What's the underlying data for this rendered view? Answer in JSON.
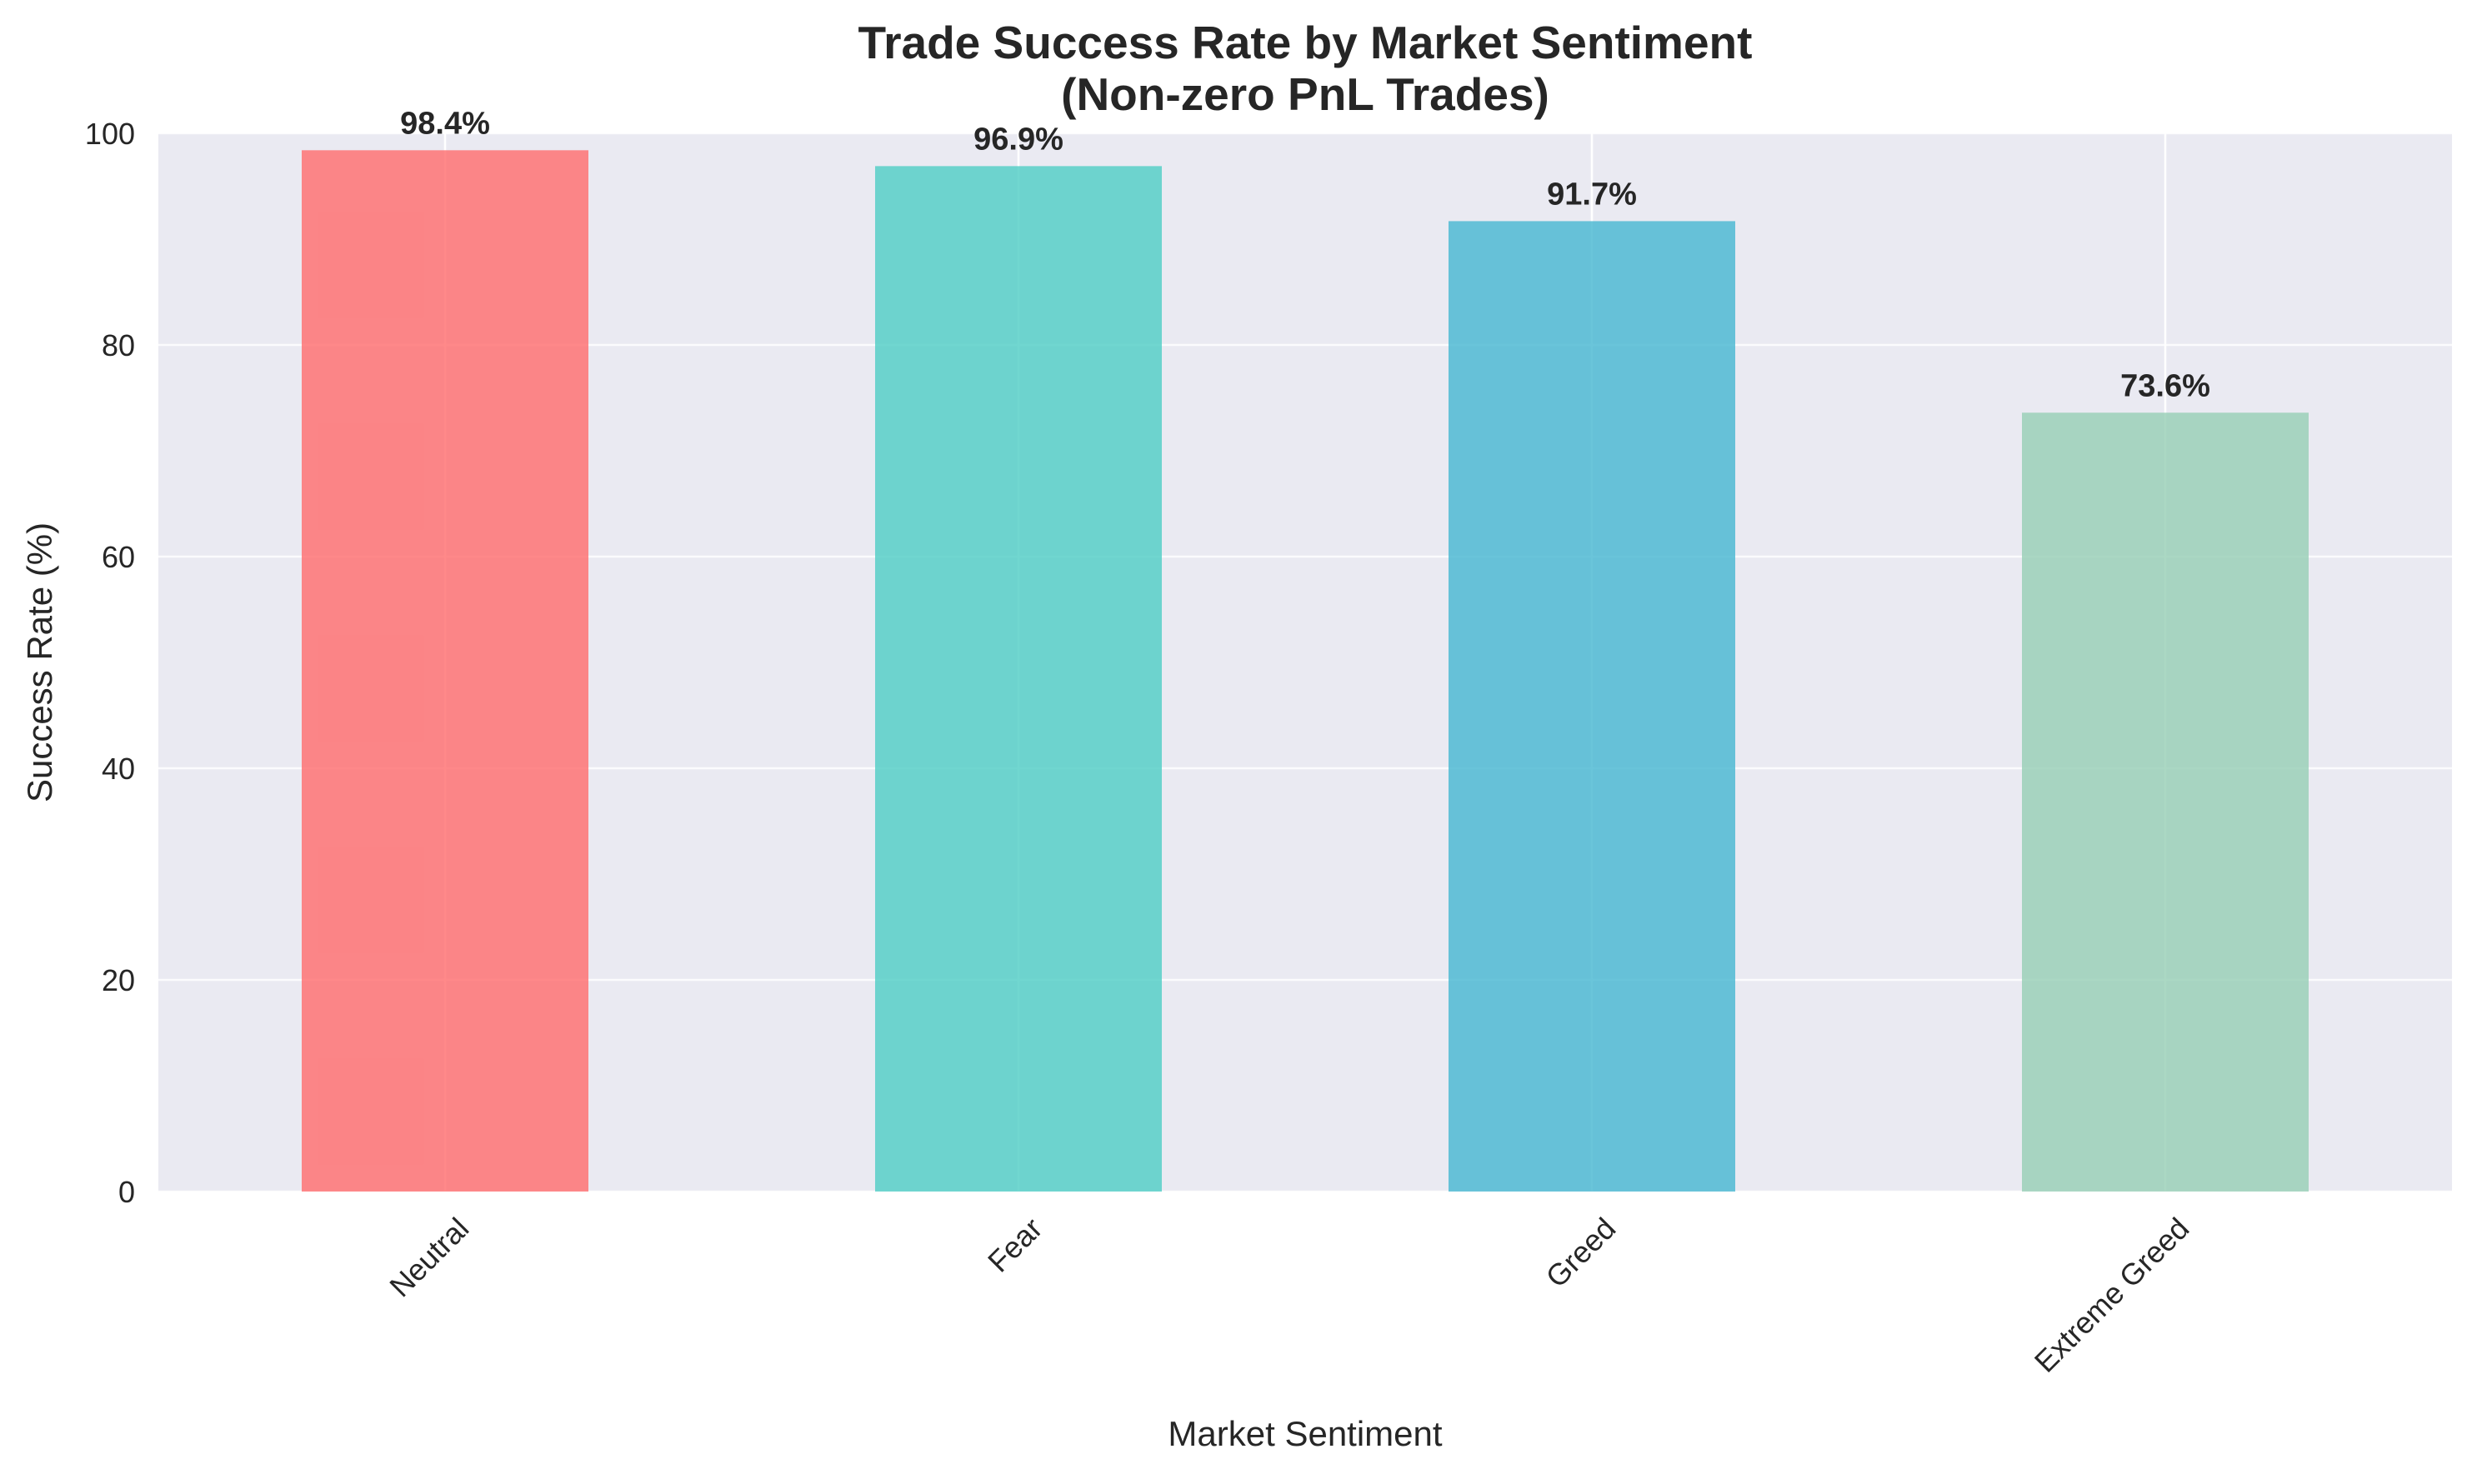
{
  "chart_data": {
    "type": "bar",
    "title": "Trade Success Rate by Market Sentiment",
    "subtitle": "(Non-zero PnL Trades)",
    "xlabel": "Market Sentiment",
    "ylabel": "Success Rate (%)",
    "categories": [
      "Neutral",
      "Fear",
      "Greed",
      "Extreme Greed"
    ],
    "values": [
      98.4,
      96.9,
      91.7,
      73.6
    ],
    "value_labels": [
      "98.4%",
      "96.9%",
      "91.7%",
      "73.6%"
    ],
    "colors": [
      "#FF6B6B",
      "#4ECDC4",
      "#45B7D1",
      "#96CEB4"
    ],
    "ylim": [
      0,
      100
    ],
    "yticks": [
      0,
      20,
      40,
      60,
      80,
      100
    ],
    "ytick_labels": [
      "0",
      "20",
      "40",
      "60",
      "80",
      "100"
    ],
    "grid": true,
    "plot_background": "#EAEAF2",
    "x_tick_rotation": "45 degrees"
  }
}
